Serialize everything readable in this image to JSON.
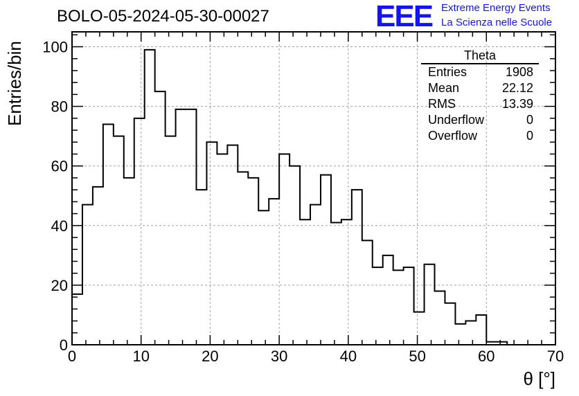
{
  "header": {
    "title": "BOLO-05-2024-05-30-00027",
    "logo_text": "EEE",
    "brand_line1": "Extreme Energy Events",
    "brand_line2": "La Scienza nelle Scuole",
    "brand_color": "#1414ee"
  },
  "stats_box": {
    "title": "Theta",
    "rows": [
      {
        "label": "Entries",
        "value": "1908"
      },
      {
        "label": "Mean",
        "value": "22.12"
      },
      {
        "label": "RMS",
        "value": "13.39"
      },
      {
        "label": "Underflow",
        "value": "0"
      },
      {
        "label": "Overflow",
        "value": "0"
      }
    ]
  },
  "chart_data": {
    "type": "bar",
    "subtype": "histogram-step",
    "title": "BOLO-05-2024-05-30-00027",
    "xlabel": "θ [°]",
    "ylabel": "Entries/bin",
    "xlim": [
      0,
      70
    ],
    "ylim": [
      0,
      105
    ],
    "x_ticks": [
      0,
      10,
      20,
      30,
      40,
      50,
      60,
      70
    ],
    "y_ticks": [
      0,
      20,
      40,
      60,
      80,
      100
    ],
    "grid": true,
    "bin_width": 1.5,
    "bin_start": 0,
    "values": [
      17,
      47,
      53,
      74,
      70,
      56,
      76,
      99,
      85,
      70,
      79,
      79,
      52,
      68,
      64,
      67,
      58,
      56,
      45,
      49,
      64,
      60,
      42,
      47,
      57,
      41,
      42,
      52,
      35,
      26,
      30,
      25,
      26,
      11,
      27,
      18,
      14,
      7,
      8,
      10,
      1,
      1,
      0
    ]
  }
}
